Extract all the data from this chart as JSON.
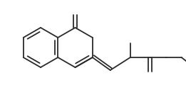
{
  "bg_color": "#ffffff",
  "line_color": "#2a2a2a",
  "line_width": 1.3,
  "figsize": [
    2.61,
    1.34
  ],
  "dpi": 100,
  "xlim": [
    0,
    261
  ],
  "ylim": [
    0,
    134
  ]
}
